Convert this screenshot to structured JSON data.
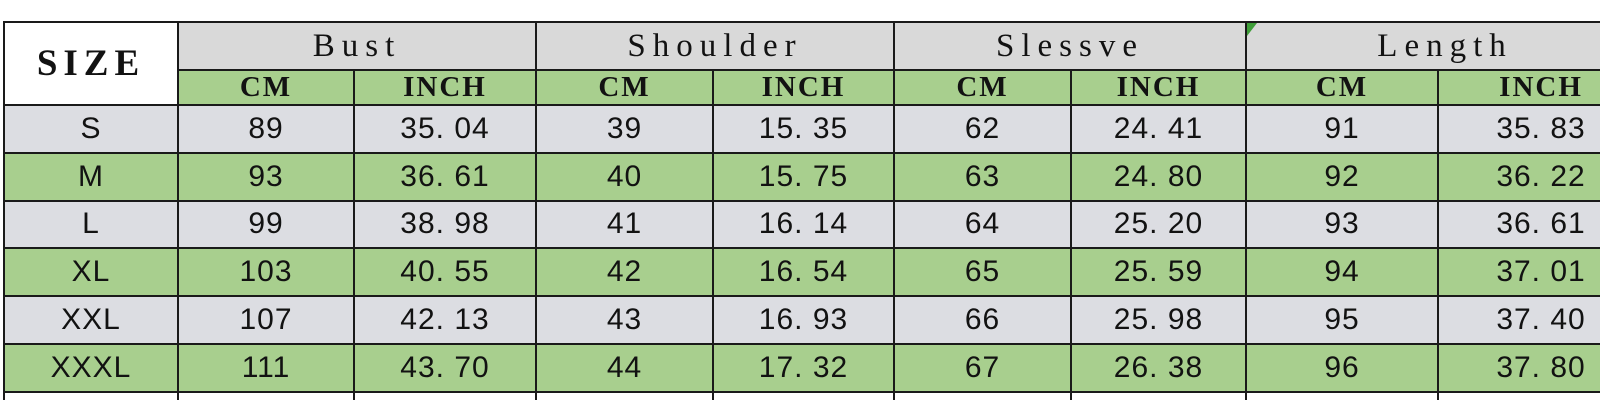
{
  "chart_data": {
    "type": "table",
    "corner_label": "SIZE",
    "column_groups": [
      "Bust",
      "Shoulder",
      "Slessve",
      "Length"
    ],
    "unit_headers": [
      "CM",
      "INCH",
      "CM",
      "INCH",
      "CM",
      "INCH",
      "CM",
      "INCH"
    ],
    "rows": [
      {
        "size": "S",
        "shade": "gray",
        "values": [
          "89",
          "35. 04",
          "39",
          "15. 35",
          "62",
          "24. 41",
          "91",
          "35. 83"
        ]
      },
      {
        "size": "M",
        "shade": "green",
        "values": [
          "93",
          "36. 61",
          "40",
          "15. 75",
          "63",
          "24. 80",
          "92",
          "36. 22"
        ]
      },
      {
        "size": "L",
        "shade": "gray",
        "values": [
          "99",
          "38. 98",
          "41",
          "16. 14",
          "64",
          "25. 20",
          "93",
          "36. 61"
        ]
      },
      {
        "size": "XL",
        "shade": "green",
        "values": [
          "103",
          "40. 55",
          "42",
          "16. 54",
          "65",
          "25. 59",
          "94",
          "37. 01"
        ]
      },
      {
        "size": "XXL",
        "shade": "gray",
        "values": [
          "107",
          "42. 13",
          "43",
          "16. 93",
          "66",
          "25. 98",
          "95",
          "37. 40"
        ]
      },
      {
        "size": "XXXL",
        "shade": "green",
        "values": [
          "111",
          "43. 70",
          "44",
          "17. 32",
          "67",
          "26. 38",
          "96",
          "37. 80"
        ]
      }
    ]
  },
  "colors": {
    "green": "#a8cf8e",
    "header_gray": "#d9d9d9",
    "row_gray": "#dcdde2",
    "border": "#1a1a1a",
    "triangle_green": "#3f9e39",
    "background": "#ffffff"
  }
}
